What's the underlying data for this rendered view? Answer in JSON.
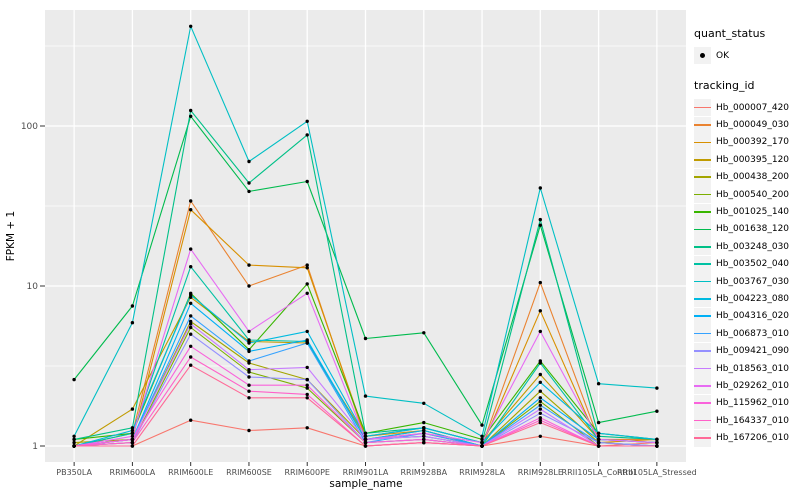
{
  "figure": {
    "background": "#FFFFFF",
    "panel_background": "#EBEBEB",
    "grid_major_color": "#FFFFFF",
    "grid_minor_color": "#FFFFFF",
    "point_color": "#000000",
    "tick_mark_color": "#333333",
    "axis_text_color": "#4D4D4D",
    "axis_title_color": "#000000",
    "legend_key_background": "#F2F2F2"
  },
  "axes": {
    "x_title": "sample_name",
    "y_title": "FPKM + 1",
    "y_tick_labels": [
      "1",
      "10",
      "100"
    ]
  },
  "legend": {
    "quant_title": "quant_status",
    "quant_items": [
      {
        "label": "OK",
        "marker": "point-marker-icon"
      }
    ],
    "tracking_title": "tracking_id"
  },
  "chart_data": {
    "type": "line",
    "title": "",
    "xlabel": "sample_name",
    "ylabel": "FPKM + 1",
    "y_scale": "log10",
    "ylim": [
      0.85,
      480
    ],
    "y_ticks": [
      1,
      10,
      100
    ],
    "y_minor_ticks": [
      3.1623,
      31.623,
      316.23
    ],
    "grid": true,
    "legend_position": "right",
    "point_shape": "solid-circle",
    "categories": [
      "PB350LA",
      "RRIM600LA",
      "RRIM600LE",
      "RRIM600SE",
      "RRIM600PE",
      "RRIM901LA",
      "RRIM928BA",
      "RRIM928LA",
      "RRIM928LE",
      "RRII105LA_Control",
      "RRII105LA_Stressed"
    ],
    "series": [
      {
        "name": "Hb_000007_420",
        "color": "#F8766D",
        "values": [
          1.0,
          1.0,
          1.45,
          1.25,
          1.3,
          1.0,
          1.05,
          1.0,
          1.15,
          1.0,
          1.05
        ]
      },
      {
        "name": "Hb_000049_030",
        "color": "#EA8331",
        "values": [
          1.0,
          1.2,
          34,
          10,
          13.5,
          1.1,
          1.2,
          1.0,
          10.5,
          1.1,
          1.1
        ]
      },
      {
        "name": "Hb_000392_170",
        "color": "#D89000",
        "values": [
          1.0,
          1.1,
          30,
          13.5,
          13,
          1.15,
          1.25,
          1.0,
          7.0,
          1.05,
          1.1
        ]
      },
      {
        "name": "Hb_000395_120",
        "color": "#C09B00",
        "values": [
          1.0,
          1.7,
          8.5,
          4.5,
          4.4,
          1.15,
          1.3,
          1.05,
          2.8,
          1.1,
          1.05
        ]
      },
      {
        "name": "Hb_000438_200",
        "color": "#A3A500",
        "values": [
          1.05,
          1.1,
          6.0,
          3.3,
          2.6,
          1.1,
          1.25,
          1.0,
          2.2,
          1.05,
          1.0
        ]
      },
      {
        "name": "Hb_000540_200",
        "color": "#7CAE00",
        "values": [
          1.0,
          1.05,
          5.5,
          2.9,
          2.3,
          1.05,
          1.1,
          1.0,
          1.9,
          1.0,
          1.0
        ]
      },
      {
        "name": "Hb_001025_140",
        "color": "#39B600",
        "values": [
          1.1,
          1.2,
          9.0,
          4.0,
          10.3,
          1.2,
          1.4,
          1.1,
          3.4,
          1.2,
          1.1
        ]
      },
      {
        "name": "Hb_001638_120",
        "color": "#00BB4E",
        "values": [
          2.6,
          7.5,
          115,
          39,
          45,
          4.7,
          5.1,
          1.35,
          24,
          1.4,
          1.65
        ]
      },
      {
        "name": "Hb_003248_030",
        "color": "#00C087",
        "values": [
          1.1,
          1.3,
          125,
          44,
          88,
          1.2,
          1.3,
          1.05,
          26,
          1.15,
          1.1
        ]
      },
      {
        "name": "Hb_003502_040",
        "color": "#00C1A3",
        "values": [
          1.0,
          1.2,
          13.2,
          4.6,
          4.5,
          1.1,
          1.15,
          1.0,
          3.3,
          1.1,
          1.05
        ]
      },
      {
        "name": "Hb_003767_030",
        "color": "#00BFC4",
        "values": [
          1.15,
          5.9,
          420,
          60,
          107,
          2.05,
          1.85,
          1.15,
          41,
          2.45,
          2.3
        ]
      },
      {
        "name": "Hb_004223_080",
        "color": "#00BAE0",
        "values": [
          1.0,
          1.25,
          8.8,
          4.4,
          5.2,
          1.15,
          1.3,
          1.05,
          2.5,
          1.2,
          1.1
        ]
      },
      {
        "name": "Hb_004316_020",
        "color": "#00B0F6",
        "values": [
          1.0,
          1.1,
          7.8,
          3.9,
          4.6,
          1.1,
          1.25,
          1.0,
          2.0,
          1.1,
          1.05
        ]
      },
      {
        "name": "Hb_006873_010",
        "color": "#35A2FF",
        "values": [
          1.0,
          1.1,
          6.5,
          3.4,
          4.4,
          1.05,
          1.2,
          1.0,
          1.8,
          1.05,
          1.0
        ]
      },
      {
        "name": "Hb_009421_090",
        "color": "#9590FF",
        "values": [
          1.0,
          1.05,
          5.0,
          2.7,
          2.6,
          1.05,
          1.1,
          1.0,
          1.6,
          1.05,
          1.0
        ]
      },
      {
        "name": "Hb_018563_010",
        "color": "#C77CFF",
        "values": [
          1.0,
          1.1,
          5.8,
          3.0,
          3.1,
          1.1,
          1.15,
          1.0,
          1.7,
          1.0,
          1.0
        ]
      },
      {
        "name": "Hb_029262_010",
        "color": "#E76BF3",
        "values": [
          1.0,
          1.15,
          17,
          5.2,
          9.0,
          1.1,
          1.2,
          1.05,
          5.2,
          1.1,
          1.05
        ]
      },
      {
        "name": "Hb_115962_010",
        "color": "#FA62DB",
        "values": [
          1.0,
          1.1,
          4.2,
          2.4,
          2.4,
          1.05,
          1.1,
          1.0,
          1.5,
          1.0,
          1.0
        ]
      },
      {
        "name": "Hb_164337_010",
        "color": "#FF61C9",
        "values": [
          1.0,
          1.05,
          3.6,
          2.2,
          2.1,
          1.0,
          1.05,
          1.0,
          1.45,
          1.0,
          1.0
        ]
      },
      {
        "name": "Hb_167206_010",
        "color": "#FF6A98",
        "values": [
          1.0,
          1.0,
          3.2,
          2.0,
          2.0,
          1.0,
          1.05,
          1.0,
          1.4,
          1.0,
          1.0
        ]
      }
    ]
  }
}
